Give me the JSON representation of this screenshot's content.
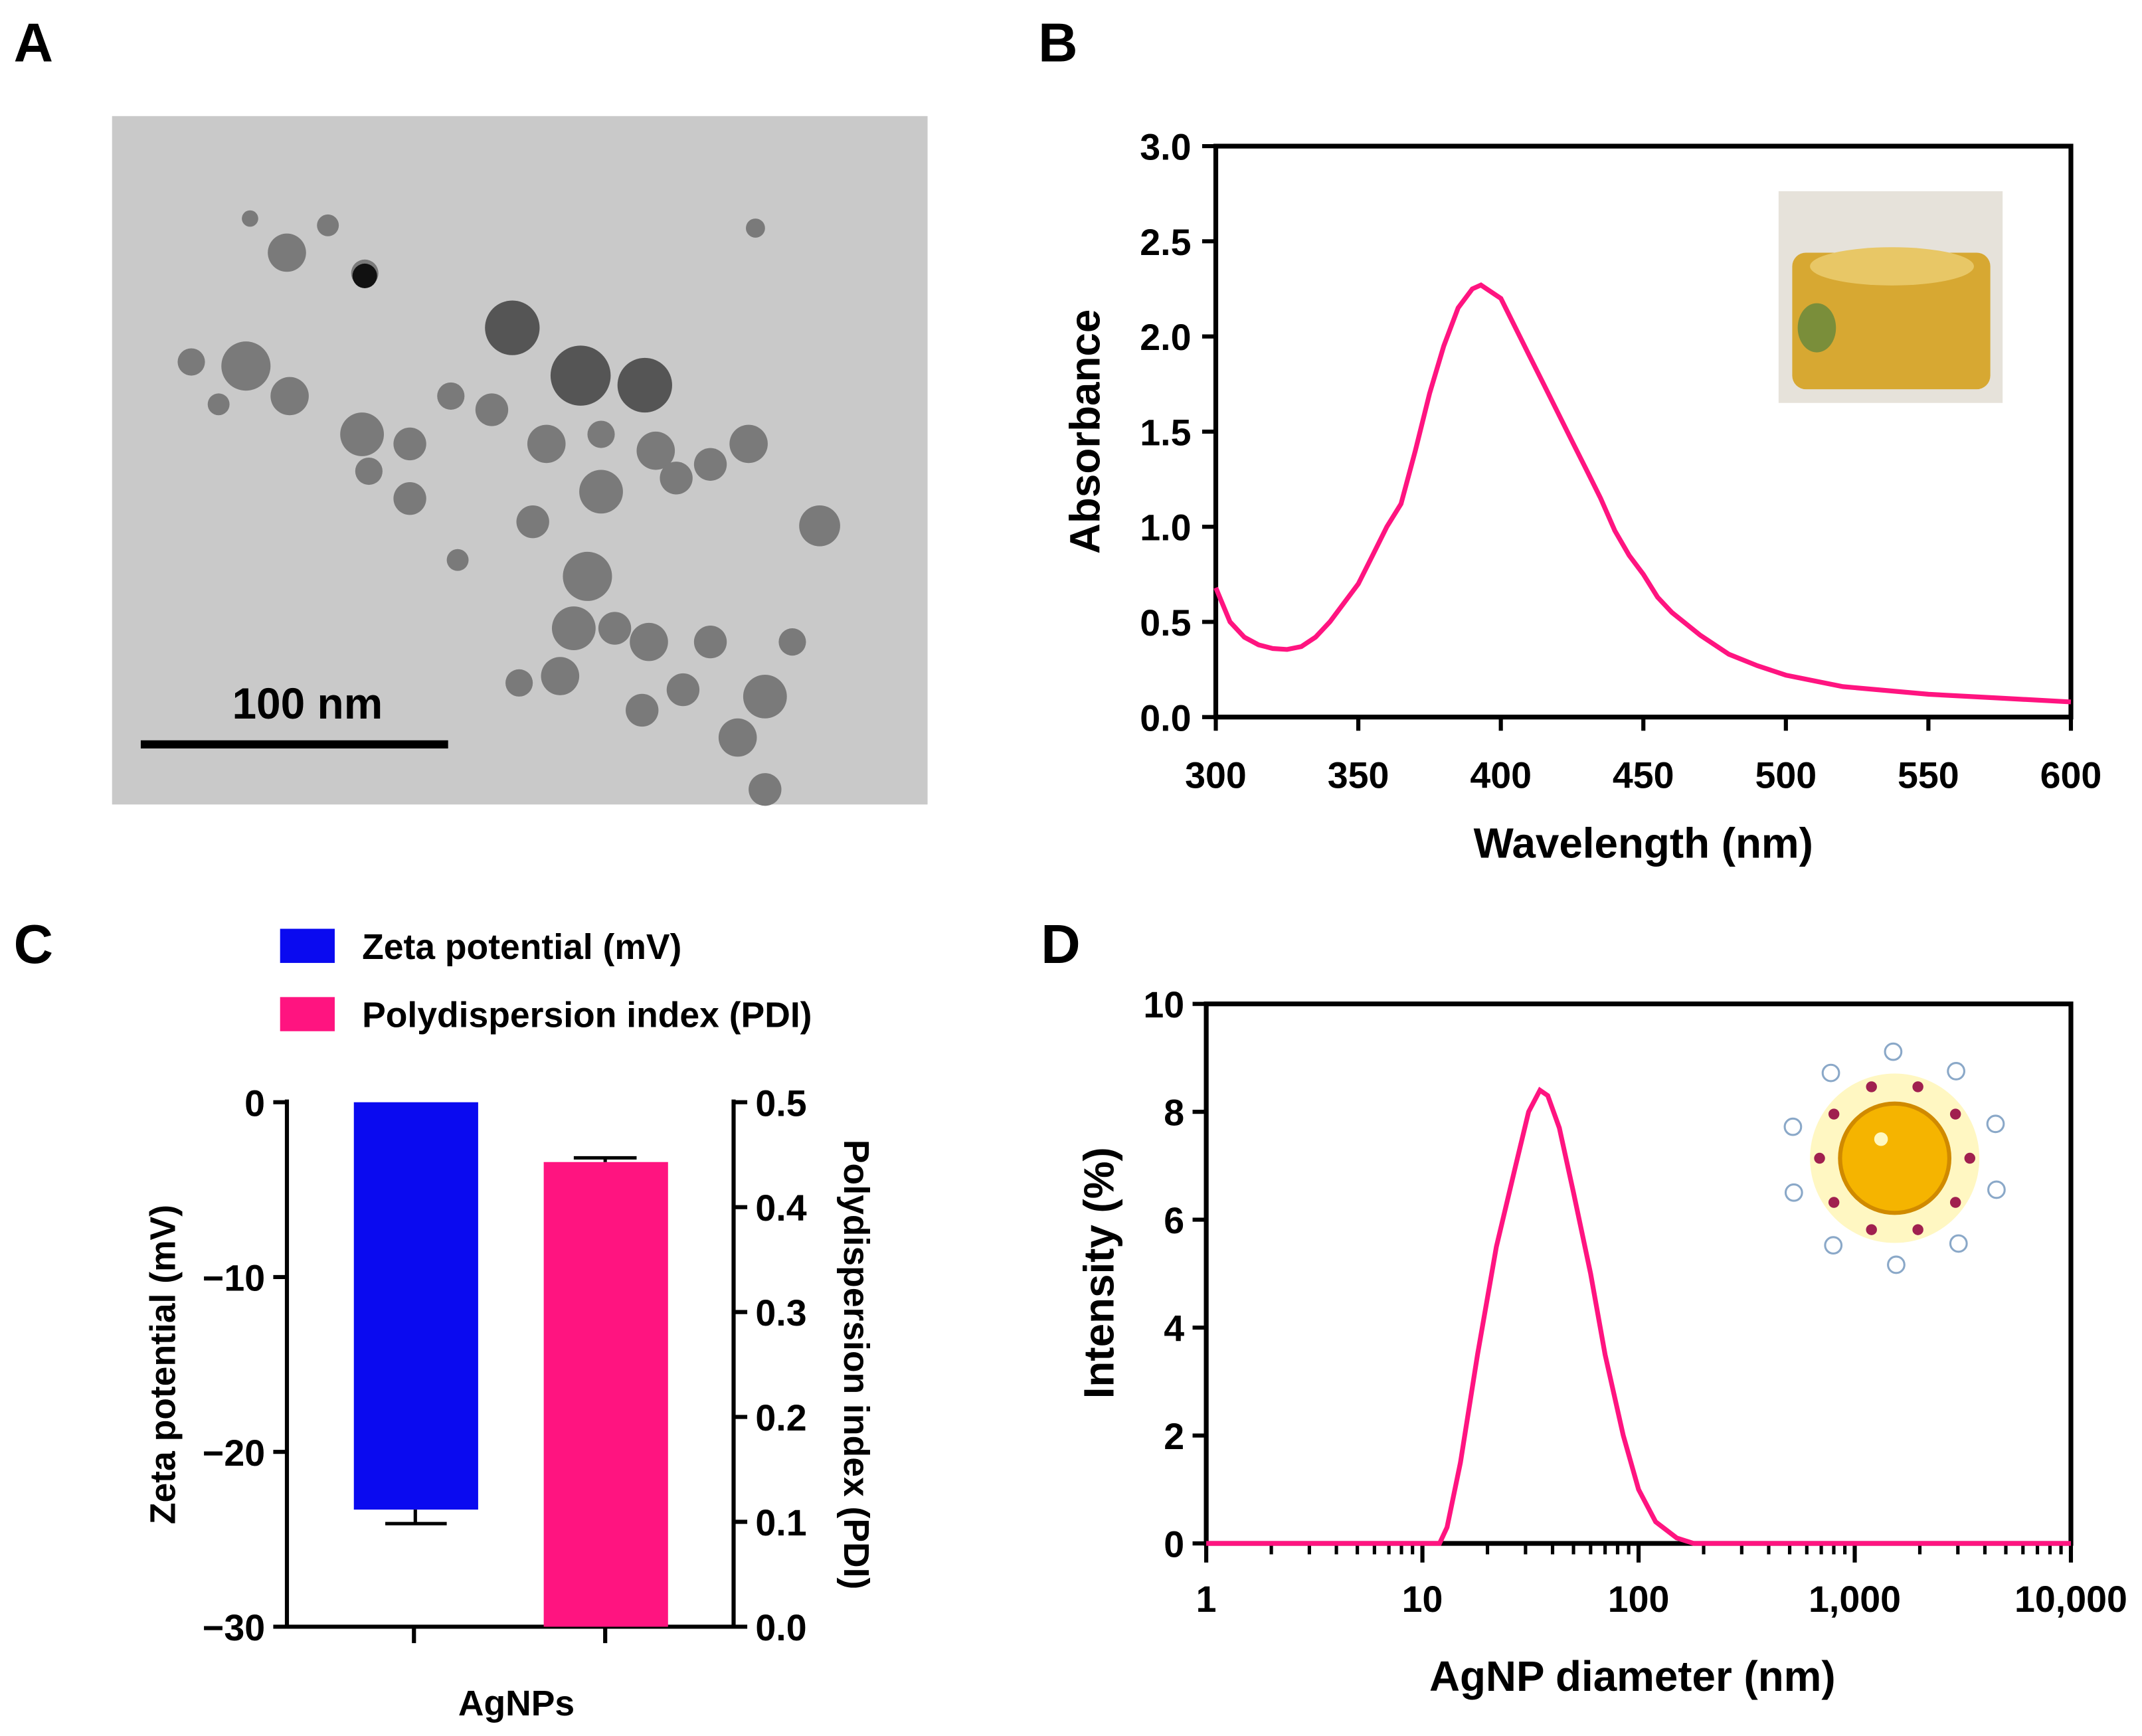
{
  "panel_labels": [
    "A",
    "B",
    "C",
    "D"
  ],
  "panel_a": {
    "scale_bar_label": "100 nm"
  },
  "colors": {
    "pink": "#ff1480",
    "blue": "#0a0af0",
    "tem_bg": "#c9c9c9"
  },
  "chart_data": [
    {
      "panel": "B",
      "type": "line",
      "title": "",
      "xlabel": "Wavelength (nm)",
      "ylabel": "Absorbance",
      "xlim": [
        300,
        600
      ],
      "ylim": [
        0,
        3.0
      ],
      "xticks": [
        "300",
        "350",
        "400",
        "450",
        "500",
        "550",
        "600"
      ],
      "yticks": [
        "0.0",
        "0.5",
        "1.0",
        "1.5",
        "2.0",
        "2.5",
        "3.0"
      ],
      "x": [
        300,
        305,
        310,
        315,
        320,
        325,
        330,
        335,
        340,
        345,
        350,
        355,
        360,
        365,
        370,
        375,
        380,
        385,
        390,
        393,
        400,
        405,
        410,
        415,
        420,
        425,
        430,
        435,
        440,
        445,
        450,
        455,
        460,
        470,
        480,
        490,
        500,
        520,
        550,
        575,
        600
      ],
      "y": [
        0.68,
        0.5,
        0.42,
        0.38,
        0.36,
        0.355,
        0.37,
        0.42,
        0.5,
        0.6,
        0.7,
        0.85,
        1.0,
        1.12,
        1.4,
        1.7,
        1.95,
        2.15,
        2.25,
        2.27,
        2.2,
        2.05,
        1.9,
        1.75,
        1.6,
        1.45,
        1.3,
        1.15,
        0.98,
        0.85,
        0.75,
        0.63,
        0.55,
        0.43,
        0.33,
        0.27,
        0.22,
        0.16,
        0.12,
        0.1,
        0.08
      ],
      "inset": "photo of yellow AgNP solution in vial"
    },
    {
      "panel": "C",
      "type": "bar",
      "categories": [
        "AgNPs"
      ],
      "legend": [
        "Zeta potential (mV)",
        "Polydispersion index (PDI)"
      ],
      "legend_placement": "top",
      "series": [
        {
          "name": "Zeta potential (mV)",
          "axis": "left",
          "values": [
            -23.3
          ],
          "error": [
            0.8
          ]
        },
        {
          "name": "Polydispersion index (PDI)",
          "axis": "right",
          "values": [
            0.443
          ],
          "error": [
            0.004
          ]
        }
      ],
      "ylabel": "Zeta potential (mV)",
      "ylabel_right": "Polydispersion index (PDI)",
      "ylim": [
        -30,
        0
      ],
      "ylim_right": [
        0,
        0.5
      ],
      "yticks": [
        "0",
        "−10",
        "−20",
        "−30"
      ],
      "yticks_right": [
        "0.5",
        "0.4",
        "0.3",
        "0.2",
        "0.1",
        "0.0"
      ],
      "xlabel": "AgNPs"
    },
    {
      "panel": "D",
      "type": "line",
      "xscale": "log",
      "xlabel": "AgNP diameter (nm)",
      "ylabel": "Intensity (%)",
      "xlim": [
        1,
        10000
      ],
      "ylim": [
        0,
        10
      ],
      "xticks": [
        "1",
        "10",
        "100",
        "1,000",
        "10,000"
      ],
      "yticks": [
        "0",
        "2",
        "4",
        "6",
        "8",
        "10"
      ],
      "x": [
        1,
        12,
        13,
        15,
        18,
        22,
        27,
        31,
        35,
        38,
        43,
        50,
        60,
        70,
        85,
        100,
        120,
        150,
        180,
        10000
      ],
      "y": [
        0,
        0,
        0.3,
        1.5,
        3.5,
        5.5,
        7.0,
        8.0,
        8.4,
        8.3,
        7.7,
        6.5,
        5.0,
        3.5,
        2.0,
        1.0,
        0.4,
        0.1,
        0,
        0
      ],
      "inset": "nanoparticle illustration with capping molecules"
    }
  ]
}
